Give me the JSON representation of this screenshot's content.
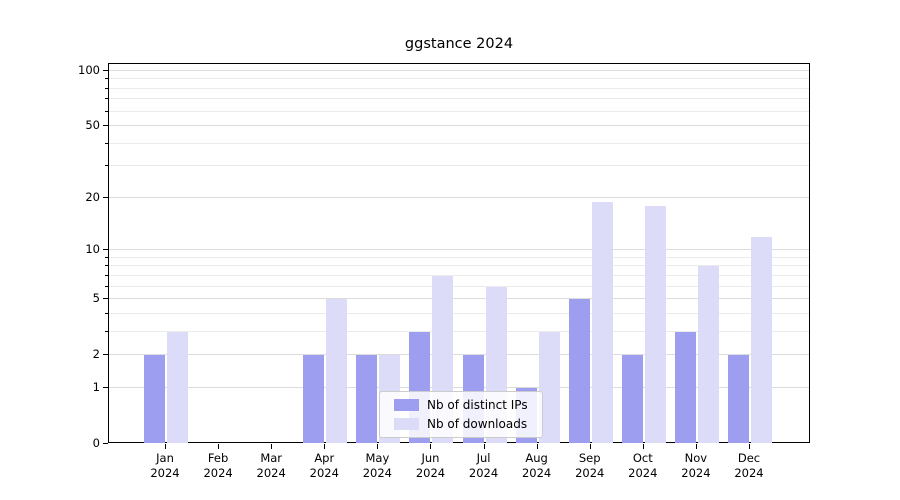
{
  "chart_data": {
    "type": "bar",
    "title": "ggstance 2024",
    "categories": [
      "Jan 2024",
      "Feb 2024",
      "Mar 2024",
      "Apr 2024",
      "May 2024",
      "Jun 2024",
      "Jul 2024",
      "Aug 2024",
      "Sep 2024",
      "Oct 2024",
      "Nov 2024",
      "Dec 2024"
    ],
    "month_labels": [
      "Jan",
      "Feb",
      "Mar",
      "Apr",
      "May",
      "Jun",
      "Jul",
      "Aug",
      "Sep",
      "Oct",
      "Nov",
      "Dec"
    ],
    "year_label": "2024",
    "series": [
      {
        "name": "Nb of distinct IPs",
        "color": "#9e9ef0",
        "values": [
          2,
          0,
          0,
          2,
          2,
          3,
          2,
          1,
          5,
          2,
          3,
          2
        ]
      },
      {
        "name": "Nb of downloads",
        "color": "#dcdcf8",
        "values": [
          3,
          0,
          0,
          5,
          2,
          7,
          6,
          3,
          19,
          18,
          8,
          12
        ]
      }
    ],
    "y_scale": "log10(value+1)",
    "y_ticks": [
      0,
      1,
      2,
      5,
      10,
      20,
      50,
      100
    ],
    "y_minor_ticks": [
      3,
      4,
      6,
      7,
      8,
      9,
      30,
      40,
      60,
      70,
      80,
      90
    ],
    "ylim": [
      0,
      109
    ],
    "grid": true,
    "legend": {
      "position": "lower center inside",
      "entries": [
        "Nb of distinct IPs",
        "Nb of downloads"
      ]
    },
    "colors": {
      "grid_major": "#dcdcdc",
      "grid_minor": "#ebebeb",
      "axis": "#000000",
      "legend_border": "#cccccc"
    }
  }
}
